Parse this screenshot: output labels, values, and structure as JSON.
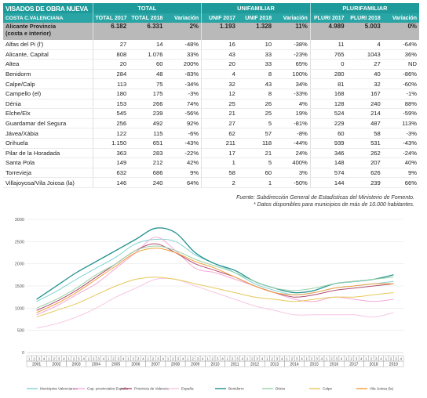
{
  "table": {
    "title": "VISADOS DE OBRA NUEVA",
    "subtitle": "COSTA C.VALENCIANA",
    "groups": [
      "TOTAL",
      "UNIFAMILIAR",
      "PLURIFAMILIAR"
    ],
    "columns": [
      "TOTAL 2017",
      "TOTAL 2018",
      "Variación",
      "UNIF 2017",
      "UNIF 2018",
      "Variación",
      "PLURI 2017",
      "PLURI 2018",
      "Variación"
    ],
    "province": {
      "name_line1": "Alicante Provincia",
      "name_line2": "(costa e interior)",
      "values": [
        "6.182",
        "6.331",
        "2%",
        "1.193",
        "1.328",
        "11%",
        "4.989",
        "5.003",
        "0%"
      ]
    },
    "rows": [
      {
        "name": "Alfas del Pi (l')",
        "values": [
          "27",
          "14",
          "-48%",
          "16",
          "10",
          "-38%",
          "11",
          "4",
          "-64%"
        ]
      },
      {
        "name": "Alicante, Capital",
        "values": [
          "808",
          "1.076",
          "33%",
          "43",
          "33",
          "-23%",
          "765",
          "1043",
          "36%"
        ]
      },
      {
        "name": "Altea",
        "values": [
          "20",
          "60",
          "200%",
          "20",
          "33",
          "65%",
          "0",
          "27",
          "ND"
        ]
      },
      {
        "name": "Benidorm",
        "values": [
          "284",
          "48",
          "-83%",
          "4",
          "8",
          "100%",
          "280",
          "40",
          "-86%"
        ]
      },
      {
        "name": "Calpe/Calp",
        "values": [
          "113",
          "75",
          "-34%",
          "32",
          "43",
          "34%",
          "81",
          "32",
          "-60%"
        ]
      },
      {
        "name": "Campello (el)",
        "values": [
          "180",
          "175",
          "-3%",
          "12",
          "8",
          "-33%",
          "168",
          "167",
          "-1%"
        ]
      },
      {
        "name": "Dénia",
        "values": [
          "153",
          "266",
          "74%",
          "25",
          "26",
          "4%",
          "128",
          "240",
          "88%"
        ]
      },
      {
        "name": "Elche/Elx",
        "values": [
          "545",
          "239",
          "-56%",
          "21",
          "25",
          "19%",
          "524",
          "214",
          "-59%"
        ]
      },
      {
        "name": "Guardamar del Segura",
        "values": [
          "256",
          "492",
          "92%",
          "27",
          "5",
          "-81%",
          "229",
          "487",
          "113%"
        ]
      },
      {
        "name": "Jávea/Xàbia",
        "values": [
          "122",
          "115",
          "-6%",
          "62",
          "57",
          "-8%",
          "60",
          "58",
          "-3%"
        ]
      },
      {
        "name": "Orihuela",
        "values": [
          "1.150",
          "651",
          "-43%",
          "211",
          "118",
          "-44%",
          "939",
          "531",
          "-43%"
        ]
      },
      {
        "name": "Pilar de la Horadada",
        "values": [
          "363",
          "283",
          "-22%",
          "17",
          "21",
          "24%",
          "346",
          "262",
          "-24%"
        ]
      },
      {
        "name": "Santa Pola",
        "values": [
          "149",
          "212",
          "42%",
          "1",
          "5",
          "400%",
          "148",
          "207",
          "40%"
        ]
      },
      {
        "name": "Torrevieja",
        "values": [
          "632",
          "686",
          "9%",
          "58",
          "60",
          "3%",
          "574",
          "626",
          "9%"
        ]
      },
      {
        "name": "Villajoyosa/Vila Joiosa (la)",
        "values": [
          "146",
          "240",
          "64%",
          "2",
          "1",
          "-50%",
          "144",
          "239",
          "66%"
        ]
      }
    ]
  },
  "source": {
    "line1": "Fuente: Subdirección General de Estadísticas del Ministerio de Fomento.",
    "line2": "* Datos disponibles para municipios de más de 10.000 habitantes."
  },
  "chart_data": {
    "type": "line",
    "ylim": [
      0,
      3000
    ],
    "yticks": [
      0,
      500,
      1000,
      1500,
      2000,
      2500,
      3000
    ],
    "years": [
      "2001",
      "2002",
      "2003",
      "2004",
      "2005",
      "2006",
      "2007",
      "2008",
      "2009",
      "2010",
      "2011",
      "2012",
      "2013",
      "2014",
      "2015",
      "2016",
      "2017",
      "2018",
      "2019"
    ],
    "quarter_labels": [
      "1",
      "2",
      "3",
      "4"
    ],
    "x_annual": [
      2001,
      2002,
      2003,
      2004,
      2005,
      2006,
      2007,
      2008,
      2009,
      2010,
      2011,
      2012,
      2013,
      2014,
      2015,
      2016,
      2017,
      2018,
      2019
    ],
    "series": [
      {
        "name": "Municipios Valencianos",
        "color": "#7fd3d3",
        "values": [
          1150,
          1380,
          1650,
          1900,
          2150,
          2450,
          2550,
          2500,
          2200,
          2000,
          1800,
          1550,
          1400,
          1300,
          1350,
          1450,
          1500,
          1550,
          1600
        ]
      },
      {
        "name": "Cap. provinciales España",
        "color": "#f5a9d8",
        "values": [
          850,
          1050,
          1300,
          1550,
          1900,
          2250,
          2600,
          2300,
          1900,
          1800,
          1650,
          1500,
          1350,
          1200,
          1150,
          1250,
          1200,
          1150,
          1200
        ]
      },
      {
        "name": "Provincia de Valencia",
        "color": "#b04a70",
        "values": [
          950,
          1150,
          1400,
          1700,
          2000,
          2300,
          2450,
          2250,
          2000,
          1850,
          1700,
          1500,
          1350,
          1250,
          1300,
          1400,
          1450,
          1500,
          1550
        ]
      },
      {
        "name": "España",
        "color": "#f7c6e3",
        "values": [
          550,
          650,
          800,
          1000,
          1250,
          1450,
          1650,
          1650,
          1500,
          1350,
          1200,
          1050,
          950,
          850,
          850,
          850,
          850,
          800,
          900
        ]
      },
      {
        "name": "Benidorm",
        "color": "#1f8f8f",
        "values": [
          1200,
          1500,
          1800,
          2050,
          2300,
          2550,
          2800,
          2700,
          2250,
          2000,
          1850,
          1600,
          1450,
          1350,
          1400,
          1550,
          1600,
          1650,
          1750
        ]
      },
      {
        "name": "Dénia",
        "color": "#9ad3a8",
        "values": [
          1000,
          1200,
          1450,
          1750,
          2000,
          2300,
          2400,
          2300,
          2100,
          1950,
          1800,
          1600,
          1450,
          1400,
          1450,
          1550,
          1600,
          1650,
          1700
        ]
      },
      {
        "name": "Calpe",
        "color": "#e6c85a",
        "values": [
          800,
          950,
          1100,
          1300,
          1500,
          1650,
          1700,
          1650,
          1550,
          1450,
          1350,
          1250,
          1200,
          1150,
          1200,
          1250,
          1250,
          1300,
          1350
        ]
      },
      {
        "name": "Vila Joiosa (la)",
        "color": "#f0a03c",
        "values": [
          900,
          1100,
          1350,
          1650,
          1950,
          2250,
          2350,
          2250,
          2050,
          1900,
          1700,
          1500,
          1350,
          1300,
          1350,
          1450,
          1500,
          1550,
          1550
        ]
      }
    ]
  }
}
